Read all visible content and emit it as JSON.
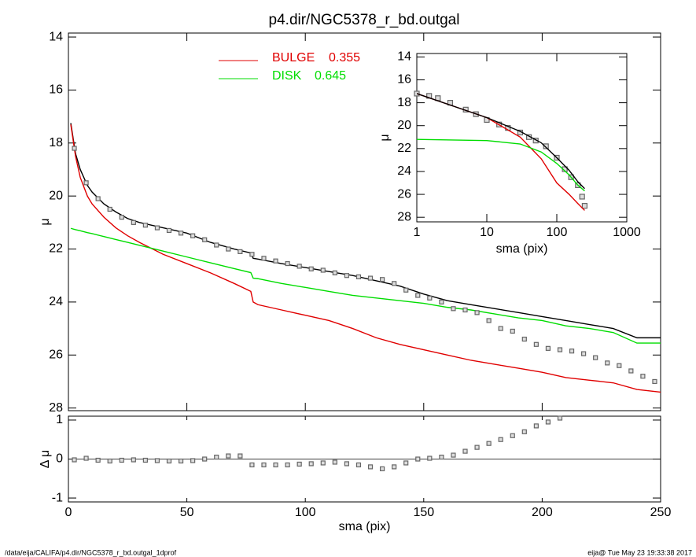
{
  "title": "p4.dir/NGC5378_r_bd.outgal",
  "footer": {
    "left": "/data/eija/CALIFA/p4.dir/NGC5378_r_bd.outgal_1dprof",
    "right": "eija@  Tue May 23 19:33:38 2017"
  },
  "chart_data": [
    {
      "type": "line",
      "ylabel": "μ",
      "xlim": [
        0,
        250
      ],
      "xticks": [
        0,
        50,
        100,
        150,
        200,
        250
      ],
      "ylim": [
        28.1,
        13.85
      ],
      "yticks": [
        14,
        16,
        18,
        20,
        22,
        24,
        26,
        28
      ],
      "series": [
        {
          "color": "#000000",
          "style": "line",
          "x": [
            1,
            3,
            5,
            8,
            10,
            15,
            20,
            25,
            30,
            40,
            50,
            60,
            70,
            77,
            78,
            80,
            90,
            100,
            110,
            120,
            130,
            140,
            150,
            160,
            170,
            180,
            190,
            200,
            210,
            220,
            230,
            240,
            250
          ],
          "values": [
            17.25,
            18.4,
            19.0,
            19.6,
            19.85,
            20.3,
            20.6,
            20.85,
            21.0,
            21.2,
            21.4,
            21.75,
            22.0,
            22.15,
            22.35,
            22.38,
            22.55,
            22.7,
            22.85,
            23.0,
            23.2,
            23.4,
            23.7,
            23.95,
            24.1,
            24.25,
            24.4,
            24.55,
            24.7,
            24.85,
            25.0,
            25.35,
            25.35
          ]
        },
        {
          "name": "BULGE",
          "fraction": 0.355,
          "color": "#e00000",
          "style": "line",
          "x": [
            1,
            3,
            5,
            8,
            10,
            15,
            20,
            25,
            30,
            40,
            50,
            60,
            70,
            77,
            78,
            80,
            90,
            100,
            110,
            120,
            130,
            140,
            150,
            160,
            170,
            180,
            190,
            200,
            210,
            220,
            230,
            240,
            250
          ],
          "values": [
            17.3,
            18.5,
            19.3,
            20.0,
            20.3,
            20.8,
            21.2,
            21.5,
            21.75,
            22.2,
            22.55,
            22.9,
            23.3,
            23.6,
            24.0,
            24.1,
            24.3,
            24.5,
            24.7,
            25.0,
            25.35,
            25.6,
            25.8,
            26.0,
            26.2,
            26.35,
            26.5,
            26.65,
            26.85,
            26.95,
            27.05,
            27.3,
            27.4
          ]
        },
        {
          "name": "DISK",
          "fraction": 0.645,
          "color": "#00dd00",
          "style": "line",
          "x": [
            1,
            3,
            5,
            8,
            10,
            15,
            20,
            25,
            30,
            40,
            50,
            60,
            70,
            77,
            78,
            80,
            90,
            100,
            110,
            120,
            130,
            140,
            150,
            160,
            170,
            180,
            190,
            200,
            210,
            220,
            230,
            240,
            250
          ],
          "values": [
            21.22,
            21.27,
            21.31,
            21.38,
            21.42,
            21.53,
            21.64,
            21.75,
            21.86,
            22.08,
            22.3,
            22.52,
            22.74,
            22.89,
            23.1,
            23.12,
            23.3,
            23.45,
            23.6,
            23.75,
            23.85,
            23.95,
            24.05,
            24.2,
            24.3,
            24.45,
            24.6,
            24.7,
            24.9,
            25.0,
            25.15,
            25.55,
            25.55
          ]
        },
        {
          "color": "#666666",
          "style": "squares",
          "x": [
            2.5,
            7.5,
            12.5,
            17.5,
            22.5,
            27.5,
            32.5,
            37.5,
            42.5,
            47.5,
            52.5,
            57.5,
            62.5,
            67.5,
            72.5,
            77.5,
            82.5,
            87.5,
            92.5,
            97.5,
            102.5,
            107.5,
            112.5,
            117.5,
            122.5,
            127.5,
            132.5,
            137.5,
            142.5,
            147.5,
            152.5,
            157.5,
            162.5,
            167.5,
            172.5,
            177.5,
            182.5,
            187.5,
            192.5,
            197.5,
            202.5,
            207.5,
            212.5,
            217.5,
            222.5,
            227.5,
            232.5,
            237.5,
            242.5,
            247.5
          ],
          "values": [
            18.2,
            19.5,
            20.1,
            20.5,
            20.8,
            21.0,
            21.1,
            21.2,
            21.3,
            21.4,
            21.5,
            21.65,
            21.85,
            22.0,
            22.1,
            22.2,
            22.35,
            22.45,
            22.55,
            22.65,
            22.75,
            22.8,
            22.9,
            23.0,
            23.05,
            23.1,
            23.15,
            23.3,
            23.55,
            23.75,
            23.85,
            24.0,
            24.25,
            24.3,
            24.4,
            24.7,
            25.0,
            25.1,
            25.4,
            25.6,
            25.75,
            25.8,
            25.85,
            25.95,
            26.1,
            26.3,
            26.4,
            26.6,
            26.8,
            27.0
          ]
        }
      ]
    },
    {
      "type": "scatter",
      "xlabel": "sma (pix)",
      "ylabel": "Δ μ",
      "hline": 0,
      "xlim": [
        0,
        250
      ],
      "xticks": [
        0,
        50,
        100,
        150,
        200,
        250
      ],
      "ylim": [
        -1.1,
        1.1
      ],
      "yticks": [
        -1,
        0,
        1
      ],
      "series": [
        {
          "color": "#666666",
          "style": "squares",
          "x": [
            2.5,
            7.5,
            12.5,
            17.5,
            22.5,
            27.5,
            32.5,
            37.5,
            42.5,
            47.5,
            52.5,
            57.5,
            62.5,
            67.5,
            72.5,
            77.5,
            82.5,
            87.5,
            92.5,
            97.5,
            102.5,
            107.5,
            112.5,
            117.5,
            122.5,
            127.5,
            132.5,
            137.5,
            142.5,
            147.5,
            152.5,
            157.5,
            162.5,
            167.5,
            172.5,
            177.5,
            182.5,
            187.5,
            192.5,
            197.5,
            202.5,
            207.5
          ],
          "values": [
            -0.02,
            0.02,
            -0.03,
            -0.05,
            -0.03,
            -0.02,
            -0.03,
            -0.04,
            -0.05,
            -0.05,
            -0.04,
            0,
            0.05,
            0.08,
            0.08,
            -0.15,
            -0.15,
            -0.15,
            -0.15,
            -0.13,
            -0.12,
            -0.1,
            -0.08,
            -0.12,
            -0.15,
            -0.2,
            -0.25,
            -0.2,
            -0.1,
            0,
            0.02,
            0.05,
            0.1,
            0.2,
            0.3,
            0.4,
            0.5,
            0.6,
            0.7,
            0.85,
            0.95,
            1.05
          ]
        }
      ]
    },
    {
      "type": "line",
      "xlabel": "sma (pix)",
      "ylabel": "μ",
      "xscale": "log",
      "xlim": [
        1,
        1000
      ],
      "xticks": [
        1,
        10,
        100,
        1000
      ],
      "ylim": [
        28.4,
        13.7
      ],
      "yticks": [
        14,
        16,
        18,
        20,
        22,
        24,
        26,
        28
      ],
      "series": [
        {
          "color": "#666666",
          "style": "squares",
          "x": [
            1,
            1.5,
            2,
            3,
            5,
            7,
            10,
            15,
            20,
            30,
            40,
            50,
            70,
            100,
            130,
            160,
            200,
            230,
            250
          ],
          "values": [
            17.2,
            17.4,
            17.6,
            18.0,
            18.6,
            19.0,
            19.5,
            19.9,
            20.2,
            20.6,
            21.0,
            21.3,
            21.8,
            22.8,
            23.8,
            24.5,
            25.2,
            26.2,
            27.0
          ]
        },
        {
          "color": "#e00000",
          "style": "line",
          "x": [
            1,
            10,
            30,
            60,
            100,
            150,
            200,
            250
          ],
          "values": [
            17.2,
            19.3,
            21.0,
            22.9,
            25.0,
            26.0,
            26.8,
            27.4
          ]
        },
        {
          "color": "#00dd00",
          "style": "line",
          "x": [
            1,
            10,
            30,
            60,
            100,
            150,
            200,
            250
          ],
          "values": [
            21.2,
            21.3,
            21.6,
            22.3,
            23.3,
            24.3,
            25.2,
            25.7
          ]
        },
        {
          "color": "#000000",
          "style": "line",
          "x": [
            1,
            10,
            30,
            60,
            100,
            150,
            200,
            250
          ],
          "values": [
            17.2,
            19.3,
            20.5,
            21.5,
            22.8,
            23.9,
            24.9,
            25.5
          ]
        }
      ]
    }
  ]
}
